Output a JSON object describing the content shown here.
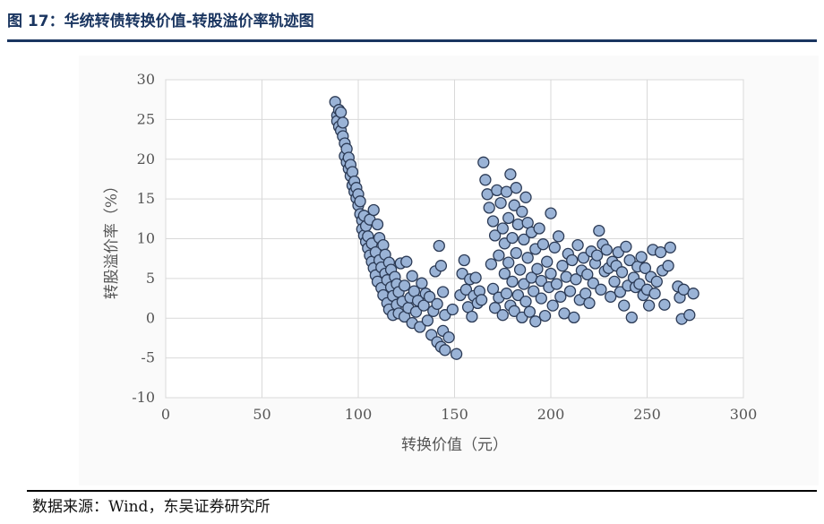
{
  "figure": {
    "title": "图 17：华统转债转换价值-转股溢价率轨迹图",
    "title_color": "#1a3560",
    "source": "数据来源：Wind，东吴证券研究所"
  },
  "chart_data": {
    "type": "scatter",
    "title": "",
    "xlabel": "转换价值（元）",
    "ylabel": "转股溢价率（%）",
    "xlim": [
      0,
      300
    ],
    "ylim": [
      -10,
      30
    ],
    "xticks": [
      0,
      50,
      100,
      150,
      200,
      250,
      300
    ],
    "yticks": [
      -10,
      -5,
      0,
      5,
      10,
      15,
      20,
      25,
      30
    ],
    "grid": true,
    "legend": "none",
    "marker_fill": "#9ab3d6",
    "marker_edge": "#2b3a55",
    "series": [
      {
        "points": [
          [
            88,
            27.2
          ],
          [
            89,
            25.5
          ],
          [
            89,
            24.8
          ],
          [
            90,
            26.2
          ],
          [
            90,
            24.1
          ],
          [
            91,
            25.9
          ],
          [
            91,
            23.6
          ],
          [
            92,
            22.9
          ],
          [
            92,
            24.6
          ],
          [
            93,
            22.0
          ],
          [
            93,
            20.4
          ],
          [
            94,
            21.3
          ],
          [
            94,
            19.6
          ],
          [
            95,
            18.8
          ],
          [
            95,
            20.2
          ],
          [
            96,
            17.9
          ],
          [
            96,
            19.3
          ],
          [
            97,
            16.7
          ],
          [
            97,
            18.4
          ],
          [
            98,
            15.9
          ],
          [
            98,
            17.2
          ],
          [
            99,
            15.1
          ],
          [
            99,
            16.4
          ],
          [
            100,
            14.2
          ],
          [
            100,
            15.6
          ],
          [
            101,
            13.1
          ],
          [
            101,
            14.7
          ],
          [
            102,
            12.3
          ],
          [
            102,
            11.2
          ],
          [
            103,
            10.4
          ],
          [
            103,
            12.9
          ],
          [
            104,
            9.6
          ],
          [
            104,
            11.6
          ],
          [
            105,
            8.8
          ],
          [
            105,
            10.3
          ],
          [
            106,
            7.9
          ],
          [
            106,
            12.4
          ],
          [
            107,
            7.1
          ],
          [
            107,
            9.4
          ],
          [
            108,
            6.3
          ],
          [
            108,
            13.6
          ],
          [
            109,
            5.4
          ],
          [
            109,
            8.3
          ],
          [
            110,
            11.8
          ],
          [
            110,
            4.6
          ],
          [
            111,
            7.3
          ],
          [
            111,
            10.1
          ],
          [
            112,
            3.8
          ],
          [
            112,
            6.4
          ],
          [
            113,
            9.2
          ],
          [
            113,
            2.9
          ],
          [
            114,
            5.6
          ],
          [
            114,
            8.0
          ],
          [
            115,
            1.9
          ],
          [
            115,
            4.8
          ],
          [
            116,
            7.0
          ],
          [
            116,
            1.1
          ],
          [
            117,
            3.9
          ],
          [
            117,
            6.1
          ],
          [
            118,
            0.4
          ],
          [
            118,
            2.8
          ],
          [
            119,
            5.2
          ],
          [
            120,
            1.7
          ],
          [
            120,
            4.3
          ],
          [
            121,
            0.6
          ],
          [
            121,
            3.3
          ],
          [
            122,
            6.9
          ],
          [
            123,
            2.1
          ],
          [
            124,
            0.2
          ],
          [
            124,
            4.1
          ],
          [
            125,
            7.1
          ],
          [
            126,
            1.3
          ],
          [
            127,
            2.6
          ],
          [
            128,
            -0.6
          ],
          [
            128,
            5.3
          ],
          [
            129,
            3.4
          ],
          [
            130,
            0.8
          ],
          [
            131,
            2.2
          ],
          [
            132,
            -1.1
          ],
          [
            133,
            4.4
          ],
          [
            134,
            1.6
          ],
          [
            135,
            3.1
          ],
          [
            136,
            -0.3
          ],
          [
            137,
            2.7
          ],
          [
            138,
            -2.1
          ],
          [
            139,
            0.9
          ],
          [
            140,
            5.9
          ],
          [
            141,
            -3.0
          ],
          [
            141,
            1.8
          ],
          [
            142,
            9.1
          ],
          [
            143,
            -3.6
          ],
          [
            143,
            6.6
          ],
          [
            144,
            -1.6
          ],
          [
            144,
            3.3
          ],
          [
            145,
            -4.0
          ],
          [
            145,
            0.4
          ],
          [
            147,
            -2.4
          ],
          [
            149,
            1.1
          ],
          [
            151,
            -4.5
          ],
          [
            153,
            2.9
          ],
          [
            154,
            5.6
          ],
          [
            155,
            7.3
          ],
          [
            156,
            3.6
          ],
          [
            157,
            1.4
          ],
          [
            158,
            4.9
          ],
          [
            159,
            0.2
          ],
          [
            160,
            2.8
          ],
          [
            161,
            5.1
          ],
          [
            162,
            1.9
          ],
          [
            163,
            3.4
          ],
          [
            164,
            2.3
          ],
          [
            165,
            19.6
          ],
          [
            166,
            17.4
          ],
          [
            167,
            15.6
          ],
          [
            168,
            13.9
          ],
          [
            169,
            6.8
          ],
          [
            170,
            3.7
          ],
          [
            170,
            12.2
          ],
          [
            171,
            1.3
          ],
          [
            171,
            10.4
          ],
          [
            172,
            16.1
          ],
          [
            173,
            7.9
          ],
          [
            173,
            2.6
          ],
          [
            174,
            14.5
          ],
          [
            175,
            11.3
          ],
          [
            175,
            0.4
          ],
          [
            176,
            5.6
          ],
          [
            176,
            9.4
          ],
          [
            177,
            15.9
          ],
          [
            177,
            3.1
          ],
          [
            178,
            12.6
          ],
          [
            178,
            7.0
          ],
          [
            179,
            1.6
          ],
          [
            179,
            18.1
          ],
          [
            180,
            10.1
          ],
          [
            180,
            4.6
          ],
          [
            181,
            14.2
          ],
          [
            181,
            0.9
          ],
          [
            182,
            8.2
          ],
          [
            182,
            16.4
          ],
          [
            183,
            2.9
          ],
          [
            183,
            11.8
          ],
          [
            184,
            6.1
          ],
          [
            185,
            13.4
          ],
          [
            185,
            0.1
          ],
          [
            186,
            4.3
          ],
          [
            186,
            9.9
          ],
          [
            187,
            15.2
          ],
          [
            187,
            2.1
          ],
          [
            188,
            7.6
          ],
          [
            188,
            12.0
          ],
          [
            189,
            0.8
          ],
          [
            190,
            5.1
          ],
          [
            190,
            10.8
          ],
          [
            191,
            3.4
          ],
          [
            192,
            8.7
          ],
          [
            192,
            -0.4
          ],
          [
            193,
            6.2
          ],
          [
            194,
            11.3
          ],
          [
            195,
            2.5
          ],
          [
            195,
            4.7
          ],
          [
            196,
            9.3
          ],
          [
            197,
            0.3
          ],
          [
            198,
            7.1
          ],
          [
            199,
            3.9
          ],
          [
            200,
            13.2
          ],
          [
            200,
            5.6
          ],
          [
            201,
            1.6
          ],
          [
            202,
            8.9
          ],
          [
            203,
            4.3
          ],
          [
            204,
            10.3
          ],
          [
            205,
            2.7
          ],
          [
            206,
            6.6
          ],
          [
            207,
            0.6
          ],
          [
            208,
            5.2
          ],
          [
            209,
            8.1
          ],
          [
            210,
            3.4
          ],
          [
            211,
            7.3
          ],
          [
            212,
            0.1
          ],
          [
            213,
            4.9
          ],
          [
            214,
            9.2
          ],
          [
            215,
            2.3
          ],
          [
            216,
            6.0
          ],
          [
            217,
            7.6
          ],
          [
            218,
            3.1
          ],
          [
            219,
            5.5
          ],
          [
            220,
            1.9
          ],
          [
            221,
            8.4
          ],
          [
            222,
            4.4
          ],
          [
            223,
            6.9
          ],
          [
            224,
            7.9
          ],
          [
            225,
            11.0
          ],
          [
            226,
            3.6
          ],
          [
            227,
            9.3
          ],
          [
            228,
            5.9
          ],
          [
            229,
            8.6
          ],
          [
            230,
            6.3
          ],
          [
            231,
            2.7
          ],
          [
            232,
            7.1
          ],
          [
            233,
            4.6
          ],
          [
            234,
            6.6
          ],
          [
            235,
            8.3
          ],
          [
            236,
            3.3
          ],
          [
            237,
            5.8
          ],
          [
            238,
            1.6
          ],
          [
            239,
            9.0
          ],
          [
            240,
            4.1
          ],
          [
            241,
            7.3
          ],
          [
            242,
            0.1
          ],
          [
            243,
            5.1
          ],
          [
            244,
            3.9
          ],
          [
            245,
            6.5
          ],
          [
            246,
            4.3
          ],
          [
            247,
            7.7
          ],
          [
            248,
            2.9
          ],
          [
            249,
            6.3
          ],
          [
            250,
            3.6
          ],
          [
            251,
            1.6
          ],
          [
            252,
            5.2
          ],
          [
            253,
            8.6
          ],
          [
            254,
            3.1
          ],
          [
            255,
            4.6
          ],
          [
            257,
            8.3
          ],
          [
            258,
            6.0
          ],
          [
            259,
            1.7
          ],
          [
            261,
            6.6
          ],
          [
            262,
            8.9
          ],
          [
            266,
            4.0
          ],
          [
            267,
            2.6
          ],
          [
            268,
            -0.1
          ],
          [
            269,
            3.6
          ],
          [
            272,
            0.4
          ],
          [
            274,
            3.1
          ]
        ]
      }
    ]
  }
}
